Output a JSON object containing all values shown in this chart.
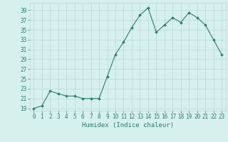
{
  "x": [
    0,
    1,
    2,
    3,
    4,
    5,
    6,
    7,
    8,
    9,
    10,
    11,
    12,
    13,
    14,
    15,
    16,
    17,
    18,
    19,
    20,
    21,
    22,
    23
  ],
  "y": [
    19,
    19.5,
    22.5,
    22,
    21.5,
    21.5,
    21,
    21,
    21,
    25.5,
    30,
    32.5,
    35.5,
    38,
    39.5,
    34.5,
    36,
    37.5,
    36.5,
    38.5,
    37.5,
    36,
    33,
    30
  ],
  "line_color": "#2e7d6e",
  "marker": "D",
  "marker_size": 1.8,
  "bg_color": "#d6f0ee",
  "grid_color": "#b8d8d8",
  "xlabel": "Humidex (Indice chaleur)",
  "ytick_labels": [
    "19",
    "21",
    "23",
    "25",
    "27",
    "29",
    "31",
    "33",
    "35",
    "37",
    "39"
  ],
  "ytick_values": [
    19,
    21,
    23,
    25,
    27,
    29,
    31,
    33,
    35,
    37,
    39
  ],
  "ylim": [
    18.5,
    40.5
  ],
  "xlim": [
    -0.5,
    23.5
  ],
  "xlabel_fontsize": 6.5,
  "tick_fontsize": 5.5
}
